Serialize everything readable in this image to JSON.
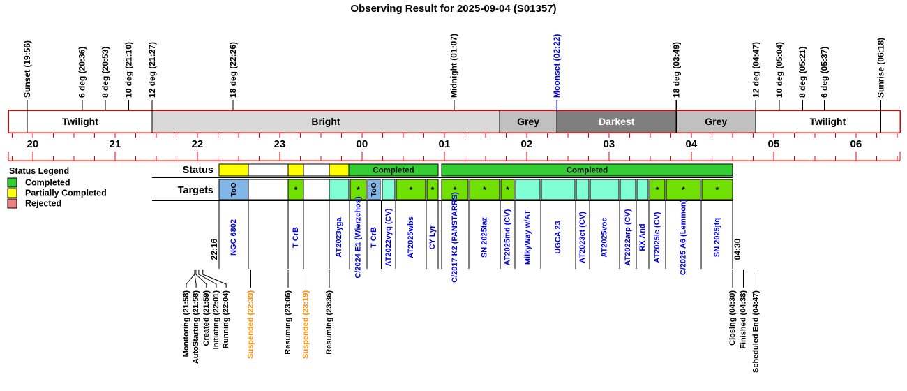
{
  "title": "Observing Result for 2025-09-04 (S01357)",
  "colors": {
    "red": "#e80000",
    "blue_text": "#0000dd",
    "target_name": "#0000ee",
    "orange": "#ff8c00",
    "band_bright": "#d9d9d9",
    "band_grey": "#c0c0c0",
    "band_darkest": "#7f7f7f",
    "status_green": "#33cc33",
    "yellow": "#ffff00",
    "target_green": "#70e000",
    "cyan": "#80ffd4",
    "too_blue": "#82b6e6",
    "rejected": "#f08080"
  },
  "chart_data": {
    "type": "timeline",
    "axis": {
      "start_hour": 19.704,
      "end_hour": 30.53,
      "minor_tick_minutes": 15,
      "hour_labels": [
        {
          "t": 20,
          "label": "20"
        },
        {
          "t": 21,
          "label": "21"
        },
        {
          "t": 22,
          "label": "22"
        },
        {
          "t": 23,
          "label": "23"
        },
        {
          "t": 24,
          "label": "00"
        },
        {
          "t": 25,
          "label": "01"
        },
        {
          "t": 26,
          "label": "02"
        },
        {
          "t": 27,
          "label": "03"
        },
        {
          "t": 28,
          "label": "04"
        },
        {
          "t": 29,
          "label": "05"
        },
        {
          "t": 30,
          "label": "06"
        }
      ]
    },
    "top_events": [
      {
        "label": "Sunset (19:56)",
        "t": 19.933,
        "color": "black",
        "line": "full"
      },
      {
        "label": "6 deg (20:36)",
        "t": 20.6,
        "color": "black",
        "line": "stub"
      },
      {
        "label": "8 deg (20:53)",
        "t": 20.883,
        "color": "black",
        "line": "stub"
      },
      {
        "label": "10 deg (21:10)",
        "t": 21.167,
        "color": "black",
        "line": "stub"
      },
      {
        "label": "12 deg (21:27)",
        "t": 21.45,
        "color": "black",
        "line": "stub"
      },
      {
        "label": "18 deg (22:26)",
        "t": 22.433,
        "color": "black",
        "line": "stub"
      },
      {
        "label": "Midnight (01:07)",
        "t": 25.117,
        "color": "black",
        "line": "stub"
      },
      {
        "label": "Moonset (02:22)",
        "t": 26.367,
        "color": "blue",
        "line": "stub"
      },
      {
        "label": "18 deg (03:49)",
        "t": 27.817,
        "color": "black",
        "line": "stub"
      },
      {
        "label": "12 deg (04:47)",
        "t": 28.783,
        "color": "black",
        "line": "stub"
      },
      {
        "label": "10 deg (05:04)",
        "t": 29.067,
        "color": "black",
        "line": "stub"
      },
      {
        "label": "8 deg (05:21)",
        "t": 29.35,
        "color": "black",
        "line": "stub"
      },
      {
        "label": "6 deg (05:37)",
        "t": 29.617,
        "color": "black",
        "line": "stub"
      },
      {
        "label": "Sunrise (06:18)",
        "t": 30.3,
        "color": "black",
        "line": "full"
      }
    ],
    "bands": [
      {
        "label": "Twilight",
        "start": 19.704,
        "end": 21.45,
        "style": "white"
      },
      {
        "label": "Bright",
        "start": 21.45,
        "end": 25.67,
        "style": "bright"
      },
      {
        "label": "Grey",
        "start": 25.67,
        "end": 26.367,
        "style": "grey"
      },
      {
        "label": "Darkest",
        "start": 26.367,
        "end": 27.817,
        "style": "darkest"
      },
      {
        "label": "Grey",
        "start": 27.817,
        "end": 28.783,
        "style": "grey"
      },
      {
        "label": "Twilight",
        "start": 28.783,
        "end": 30.53,
        "style": "white"
      }
    ],
    "band_boundaries": [
      21.45,
      25.67,
      26.367,
      27.817,
      28.783
    ],
    "legend": {
      "title": "Status Legend",
      "items": [
        {
          "label": "Completed",
          "color_key": "status_green"
        },
        {
          "label": "Partially Completed",
          "color_key": "yellow"
        },
        {
          "label": "Rejected",
          "color_key": "rejected"
        }
      ]
    },
    "status_row": {
      "label": "Status",
      "blocks": [
        {
          "start": 22.264,
          "end": 22.62,
          "color": "yellow",
          "label": ""
        },
        {
          "start": 22.62,
          "end": 23.103,
          "color": "white",
          "label": ""
        },
        {
          "start": 23.103,
          "end": 23.289,
          "color": "yellow",
          "label": ""
        },
        {
          "start": 23.289,
          "end": 23.603,
          "color": "white",
          "label": ""
        },
        {
          "start": 23.603,
          "end": 23.84,
          "color": "yellow",
          "label": ""
        },
        {
          "start": 23.84,
          "end": 24.925,
          "color": "green",
          "label": "Completed"
        },
        {
          "start": 24.967,
          "end": 28.5,
          "color": "green",
          "label": "Completed"
        }
      ]
    },
    "targets_row": {
      "label": "Targets",
      "blocks": [
        {
          "start": 22.264,
          "end": 22.62,
          "kind": "too",
          "name": "NGC 6802"
        },
        {
          "start": 22.62,
          "end": 23.103,
          "kind": "gap",
          "name": ""
        },
        {
          "start": 23.103,
          "end": 23.289,
          "kind": "ok",
          "name": "T CrB"
        },
        {
          "start": 23.289,
          "end": 23.603,
          "kind": "gap",
          "name": ""
        },
        {
          "start": 23.603,
          "end": 23.84,
          "kind": "obs",
          "name": "AT2023yga"
        },
        {
          "start": 23.857,
          "end": 24.052,
          "kind": "ok",
          "name": "C/2024 E1 (Wierzchos)"
        },
        {
          "start": 24.069,
          "end": 24.221,
          "kind": "too",
          "name": "T CrB"
        },
        {
          "start": 24.246,
          "end": 24.399,
          "kind": "obs",
          "name": "AT2022vyq (CV)"
        },
        {
          "start": 24.416,
          "end": 24.772,
          "kind": "ok",
          "name": "AT2025wbs"
        },
        {
          "start": 24.789,
          "end": 24.925,
          "kind": "ok",
          "name": "CY Lyr"
        },
        {
          "start": 24.967,
          "end": 25.289,
          "kind": "ok",
          "name": "C/2017 K2 (PANSTARRS)"
        },
        {
          "start": 25.306,
          "end": 25.67,
          "kind": "ok",
          "name": "SN 2025taz"
        },
        {
          "start": 25.687,
          "end": 25.848,
          "kind": "ok",
          "name": "AT2025md (CV)"
        },
        {
          "start": 25.865,
          "end": 26.161,
          "kind": "obs",
          "name": "MilkyWay w/AT"
        },
        {
          "start": 26.178,
          "end": 26.585,
          "kind": "obs",
          "name": "UGCA 23"
        },
        {
          "start": 26.602,
          "end": 26.754,
          "kind": "obs",
          "name": "AT2023ct (CV)"
        },
        {
          "start": 26.771,
          "end": 27.119,
          "kind": "obs",
          "name": "AT2025voc"
        },
        {
          "start": 27.136,
          "end": 27.322,
          "kind": "obs",
          "name": "AT2022arp (CV)"
        },
        {
          "start": 27.339,
          "end": 27.475,
          "kind": "obs",
          "name": "RX And"
        },
        {
          "start": 27.492,
          "end": 27.678,
          "kind": "ok",
          "name": "AT2025lc (CV)"
        },
        {
          "start": 27.695,
          "end": 28.11,
          "kind": "ok",
          "name": "C/2025 A6 (Lemmon)"
        },
        {
          "start": 28.127,
          "end": 28.5,
          "kind": "ok",
          "name": "SN 2025jtq"
        }
      ]
    },
    "side_times": [
      {
        "label": "22:16",
        "t": 22.205
      },
      {
        "label": "04:30",
        "t": 28.56
      }
    ],
    "bottom_events": [
      {
        "label": "Monitoring (21:58)",
        "t": 21.967,
        "color": "black",
        "label_t": 21.865
      },
      {
        "label": "AutoStarting (21:58)",
        "t": 21.967,
        "color": "black",
        "label_t": 21.985
      },
      {
        "label": "Created (21:59)",
        "t": 21.983,
        "color": "black",
        "label_t": 22.11
      },
      {
        "label": "Initiating (22:01)",
        "t": 22.017,
        "color": "black",
        "label_t": 22.23
      },
      {
        "label": "Running (22:04)",
        "t": 22.067,
        "color": "black",
        "label_t": 22.35
      },
      {
        "label": "Suspended (22:39)",
        "t": 22.65,
        "color": "orange"
      },
      {
        "label": "Resuming (23:06)",
        "t": 23.103,
        "color": "black"
      },
      {
        "label": "Suspended (23:19)",
        "t": 23.317,
        "color": "orange"
      },
      {
        "label": "Resuming (23:36)",
        "t": 23.603,
        "color": "black"
      },
      {
        "label": "Closing (04:30)",
        "t": 28.5,
        "color": "black"
      },
      {
        "label": "Finished (04:38)",
        "t": 28.633,
        "color": "black"
      },
      {
        "label": "Scheduled End (04:47)",
        "t": 28.783,
        "color": "black"
      }
    ]
  }
}
